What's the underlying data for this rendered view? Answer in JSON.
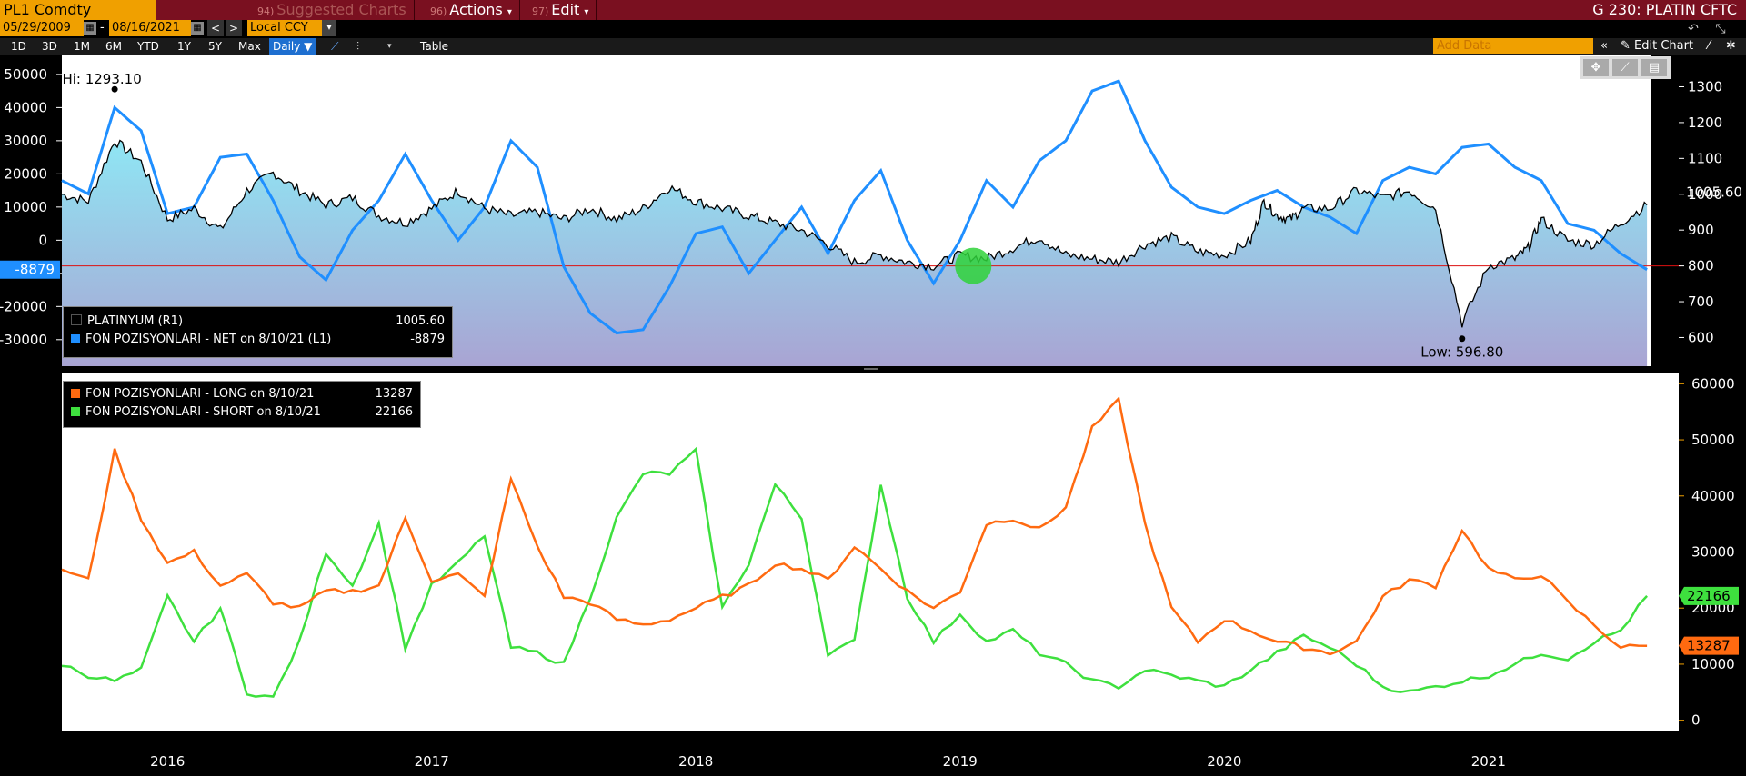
{
  "header": {
    "ticker": "PL1 Comdty",
    "menu": [
      {
        "num": "94)",
        "label": "Suggested Charts",
        "dim": true
      },
      {
        "num": "96)",
        "label": "Actions",
        "dropdown": "▾"
      },
      {
        "num": "97)",
        "label": "Edit",
        "dropdown": "▾"
      }
    ],
    "screen_title": "G 230: PLATIN CFTC"
  },
  "toolbar": {
    "start_date": "05/29/2009",
    "dash": "-",
    "end_date": "08/16/2021",
    "currency": "Local CCY",
    "periods": [
      "1D",
      "3D",
      "1M",
      "6M",
      "YTD",
      "1Y",
      "5Y",
      "Max"
    ],
    "frequency": "Daily ▼",
    "table_label": "Table",
    "add_data_placeholder": "Add Data",
    "edit_chart_label": "Edit Chart"
  },
  "colors": {
    "price": "#000000",
    "net": "#1f8fff",
    "long": "#ff6a10",
    "short": "#3ee03e",
    "area_top": "#8fe6f4",
    "area_bottom": "#a9a4d3",
    "header_bar": "#7a1020",
    "accent": "#f0a000"
  },
  "chart_data": [
    {
      "type": "area",
      "legend_placement": "bottom-left",
      "left_axis_ticks": [
        -30000,
        -20000,
        -10000,
        0,
        10000,
        20000,
        30000,
        40000,
        50000
      ],
      "right_axis_ticks": [
        600,
        700,
        800,
        900,
        1000,
        1100,
        1200,
        1300
      ],
      "left_ylim": [
        -38000,
        56000
      ],
      "right_ylim": [
        520,
        1390
      ],
      "annotations": {
        "hi": "Hi: 1293.10",
        "low": "Low: 596.80",
        "left_marker": "-8879",
        "right_marker": "1005.60",
        "hline_value": 800
      },
      "series": [
        {
          "name": "PLATINYUM (R1)",
          "last": "1005.60",
          "axis": "right",
          "x": [
            2015.6,
            2015.7,
            2015.8,
            2015.9,
            2016.0,
            2016.1,
            2016.2,
            2016.3,
            2016.4,
            2016.5,
            2016.6,
            2016.7,
            2016.8,
            2016.9,
            2017.0,
            2017.1,
            2017.2,
            2017.3,
            2017.4,
            2017.5,
            2017.6,
            2017.7,
            2017.8,
            2017.9,
            2018.0,
            2018.1,
            2018.2,
            2018.3,
            2018.4,
            2018.5,
            2018.6,
            2018.7,
            2018.8,
            2018.9,
            2019.0,
            2019.1,
            2019.2,
            2019.3,
            2019.4,
            2019.5,
            2019.6,
            2019.7,
            2019.8,
            2019.9,
            2020.0,
            2020.1,
            2020.15,
            2020.2,
            2020.25,
            2020.3,
            2020.4,
            2020.5,
            2020.6,
            2020.7,
            2020.8,
            2020.9,
            2021.0,
            2021.1,
            2021.15,
            2021.2,
            2021.3,
            2021.4,
            2021.5,
            2021.6
          ],
          "y": [
            1000,
            980,
            1150,
            1090,
            930,
            960,
            900,
            1010,
            1060,
            1010,
            970,
            990,
            940,
            920,
            960,
            1010,
            960,
            940,
            950,
            930,
            960,
            930,
            960,
            1020,
            980,
            960,
            940,
            920,
            900,
            860,
            810,
            830,
            810,
            800,
            830,
            820,
            850,
            880,
            830,
            820,
            810,
            860,
            880,
            840,
            830,
            870,
            980,
            940,
            930,
            960,
            960,
            1010,
            990,
            1010,
            960,
            640,
            800,
            820,
            850,
            930,
            870,
            860,
            920,
            970
          ]
        },
        {
          "name": "FON POZISYONLARI - NET on 8/10/21 (L1)",
          "last": "-8879",
          "axis": "left",
          "x": [
            2015.6,
            2015.7,
            2015.8,
            2015.9,
            2016.0,
            2016.1,
            2016.2,
            2016.3,
            2016.4,
            2016.5,
            2016.6,
            2016.7,
            2016.8,
            2016.9,
            2017.0,
            2017.1,
            2017.2,
            2017.3,
            2017.4,
            2017.5,
            2017.6,
            2017.7,
            2017.8,
            2017.9,
            2018.0,
            2018.1,
            2018.2,
            2018.3,
            2018.4,
            2018.5,
            2018.6,
            2018.7,
            2018.8,
            2018.9,
            2019.0,
            2019.1,
            2019.2,
            2019.3,
            2019.4,
            2019.5,
            2019.6,
            2019.7,
            2019.8,
            2019.9,
            2020.0,
            2020.1,
            2020.2,
            2020.3,
            2020.4,
            2020.5,
            2020.6,
            2020.7,
            2020.8,
            2020.9,
            2021.0,
            2021.1,
            2021.2,
            2021.3,
            2021.4,
            2021.5,
            2021.6
          ],
          "y": [
            18000,
            14000,
            40000,
            33000,
            8000,
            10000,
            25000,
            26000,
            12000,
            -5000,
            -12000,
            3000,
            12000,
            26000,
            12000,
            0,
            10000,
            30000,
            22000,
            -8000,
            -22000,
            -28000,
            -27000,
            -14000,
            2000,
            4000,
            -10000,
            0,
            10000,
            -4000,
            12000,
            21000,
            0,
            -13000,
            0,
            18000,
            10000,
            24000,
            30000,
            45000,
            48000,
            30000,
            16000,
            10000,
            8000,
            12000,
            15000,
            10000,
            7000,
            2000,
            18000,
            22000,
            20000,
            28000,
            29000,
            22000,
            18000,
            5000,
            3000,
            -4000,
            -8879
          ]
        }
      ]
    },
    {
      "type": "line",
      "legend_placement": "top-left",
      "right_axis_ticks": [
        0,
        10000,
        20000,
        30000,
        40000,
        50000,
        60000
      ],
      "ylim": [
        -2000,
        62000
      ],
      "x_tick_labels": [
        "2016",
        "2017",
        "2018",
        "2019",
        "2020",
        "2021"
      ],
      "x_tick_positions": [
        2016.0,
        2017.0,
        2018.0,
        2019.0,
        2020.0,
        2021.0
      ],
      "xlim": [
        2015.6,
        2021.72
      ],
      "annotations": {
        "long_marker": "13287",
        "short_marker": "22166"
      },
      "series": [
        {
          "name": "FON POZISYONLARI - LONG on 8/10/21",
          "last": "13287",
          "x": [
            2015.6,
            2015.7,
            2015.8,
            2015.9,
            2016.0,
            2016.1,
            2016.2,
            2016.3,
            2016.4,
            2016.5,
            2016.6,
            2016.7,
            2016.8,
            2016.9,
            2017.0,
            2017.1,
            2017.2,
            2017.3,
            2017.4,
            2017.5,
            2017.6,
            2017.7,
            2017.8,
            2017.9,
            2018.0,
            2018.1,
            2018.2,
            2018.3,
            2018.4,
            2018.5,
            2018.6,
            2018.7,
            2018.8,
            2018.9,
            2019.0,
            2019.1,
            2019.2,
            2019.3,
            2019.4,
            2019.5,
            2019.6,
            2019.7,
            2019.8,
            2019.9,
            2020.0,
            2020.1,
            2020.2,
            2020.3,
            2020.4,
            2020.5,
            2020.6,
            2020.7,
            2020.8,
            2020.9,
            2021.0,
            2021.1,
            2021.2,
            2021.3,
            2021.4,
            2021.5,
            2021.6
          ],
          "y": [
            27000,
            25000,
            48000,
            36000,
            28000,
            30000,
            24000,
            26000,
            21000,
            20000,
            23000,
            23000,
            24000,
            36000,
            25000,
            26000,
            22000,
            43000,
            31000,
            22000,
            21000,
            18000,
            17000,
            18000,
            20000,
            22000,
            24000,
            28000,
            27000,
            25000,
            31000,
            27000,
            23000,
            20000,
            23000,
            35000,
            36000,
            34000,
            38000,
            52000,
            57000,
            35000,
            20000,
            14000,
            18000,
            16000,
            14000,
            13000,
            12000,
            14000,
            22000,
            25000,
            24000,
            34000,
            27000,
            25000,
            26000,
            21000,
            17000,
            13000,
            13287
          ]
        },
        {
          "name": "FON POZISYONLARI - SHORT on 8/10/21",
          "last": "22166",
          "x": [
            2015.6,
            2015.7,
            2015.8,
            2015.9,
            2016.0,
            2016.1,
            2016.2,
            2016.3,
            2016.4,
            2016.5,
            2016.6,
            2016.7,
            2016.8,
            2016.9,
            2017.0,
            2017.1,
            2017.2,
            2017.3,
            2017.4,
            2017.5,
            2017.6,
            2017.7,
            2017.8,
            2017.9,
            2018.0,
            2018.1,
            2018.2,
            2018.3,
            2018.4,
            2018.5,
            2018.6,
            2018.7,
            2018.8,
            2018.9,
            2019.0,
            2019.1,
            2019.2,
            2019.3,
            2019.4,
            2019.5,
            2019.6,
            2019.7,
            2019.8,
            2019.9,
            2020.0,
            2020.1,
            2020.2,
            2020.3,
            2020.4,
            2020.5,
            2020.6,
            2020.7,
            2020.8,
            2020.9,
            2021.0,
            2021.1,
            2021.2,
            2021.3,
            2021.4,
            2021.5,
            2021.6
          ],
          "y": [
            10000,
            8000,
            7000,
            9000,
            22000,
            14000,
            20000,
            5000,
            4000,
            14000,
            30000,
            24000,
            35000,
            13000,
            24000,
            28000,
            33000,
            13000,
            12000,
            10000,
            22000,
            36000,
            44000,
            44000,
            48000,
            20000,
            28000,
            42000,
            36000,
            12000,
            14000,
            42000,
            22000,
            14000,
            19000,
            14000,
            16000,
            12000,
            10000,
            7000,
            6000,
            9000,
            8000,
            7000,
            6000,
            9000,
            12000,
            15000,
            13000,
            10000,
            6000,
            5000,
            6000,
            7000,
            8000,
            10000,
            12000,
            11000,
            14000,
            16000,
            22166
          ]
        }
      ]
    }
  ]
}
